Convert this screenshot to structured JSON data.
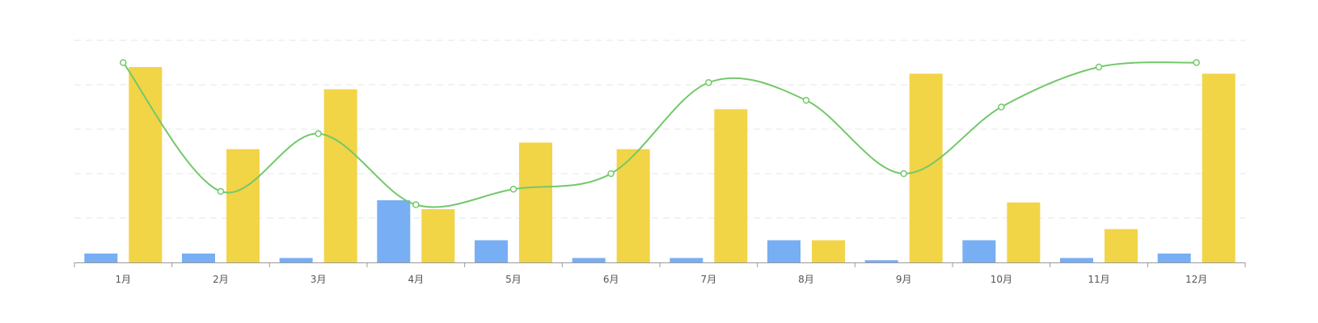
{
  "chart_data": {
    "type": "bar",
    "categories": [
      "1月",
      "2月",
      "3月",
      "4月",
      "5月",
      "6月",
      "7月",
      "8月",
      "9月",
      "10月",
      "11月",
      "12月"
    ],
    "series": [
      {
        "type": "bar",
        "color": "#78aef3",
        "values": [
          0.2,
          0.2,
          0.1,
          1.4,
          0.5,
          0.1,
          0.1,
          0.5,
          0.05,
          0.5,
          0.1,
          0.2
        ]
      },
      {
        "type": "bar",
        "color": "#f2d447",
        "values": [
          4.4,
          2.55,
          3.9,
          1.2,
          2.7,
          2.55,
          3.45,
          0.5,
          4.25,
          1.35,
          0.75,
          4.25
        ]
      },
      {
        "type": "line",
        "smooth": true,
        "color": "#72c86a",
        "values": [
          4.5,
          1.6,
          2.9,
          1.3,
          1.65,
          2.0,
          4.05,
          3.65,
          2.0,
          3.5,
          4.4,
          4.5
        ]
      }
    ],
    "ylim": [
      0,
      5
    ],
    "y_ticks_shown": false,
    "grid": "horizontal-dashed",
    "legend": "none"
  }
}
